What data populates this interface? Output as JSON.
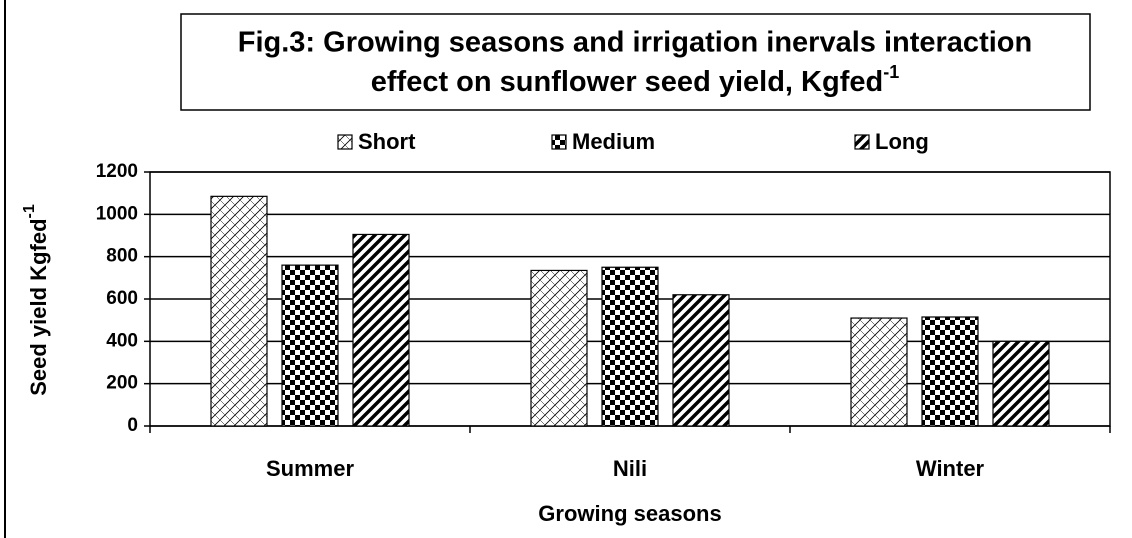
{
  "chart_data": {
    "type": "bar",
    "title": [
      "Fig.3: Growing seasons and irrigation inervals interaction",
      "effect on sunflower seed yield, Kgfed"
    ],
    "title_superscript": "-1",
    "y_label": "Seed yield Kgfed",
    "y_label_superscript": "-1",
    "x_label": "Growing seasons",
    "categories": [
      "Summer",
      "Nili",
      "Winter"
    ],
    "series": [
      {
        "name": "Short",
        "color": "#000000",
        "pattern": "crosshatch",
        "values": [
          1085,
          735,
          510
        ]
      },
      {
        "name": "Medium",
        "color": "#000000",
        "pattern": "checker",
        "values": [
          760,
          750,
          515
        ]
      },
      {
        "name": "Long",
        "color": "#000000",
        "pattern": "stripes",
        "values": [
          905,
          620,
          400
        ]
      }
    ],
    "ylim": [
      0,
      1200
    ],
    "yticks": [
      0,
      200,
      400,
      600,
      800,
      1000,
      1200
    ],
    "grid": true
  }
}
